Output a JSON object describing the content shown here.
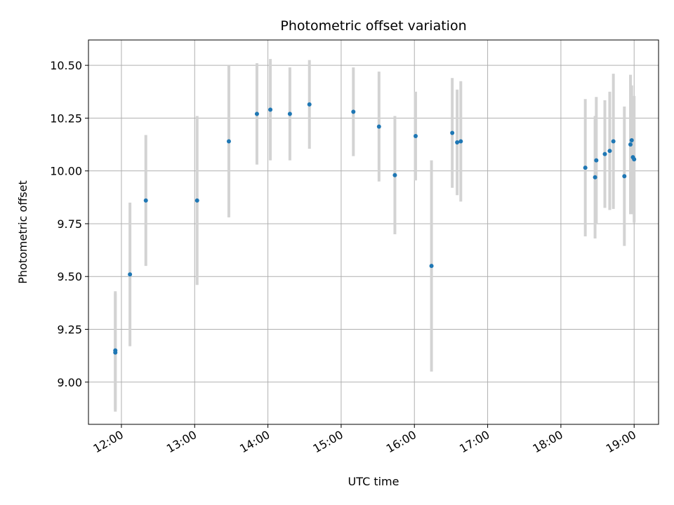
{
  "chart_data": {
    "type": "scatter",
    "title": "Photometric offset variation",
    "xlabel": "UTC time",
    "ylabel": "Photometric offset",
    "xlim": [
      "11:33",
      "19:20"
    ],
    "ylim": [
      8.8,
      10.62
    ],
    "x_ticks": [
      "12:00",
      "13:00",
      "14:00",
      "15:00",
      "16:00",
      "17:00",
      "18:00",
      "19:00"
    ],
    "y_ticks": [
      "9.00",
      "9.25",
      "9.50",
      "9.75",
      "10.00",
      "10.25",
      "10.50"
    ],
    "grid": true,
    "colors": {
      "points": "#1f77b4",
      "error_bars": "#d3d3d3",
      "grid": "#b0b0b0"
    },
    "points": [
      {
        "x": "11:55",
        "y": 9.15,
        "err": 0.28
      },
      {
        "x": "11:55",
        "y": 9.14,
        "err": 0.28
      },
      {
        "x": "12:07",
        "y": 9.51,
        "err": 0.34
      },
      {
        "x": "12:20",
        "y": 9.86,
        "err": 0.31
      },
      {
        "x": "13:02",
        "y": 9.86,
        "err": 0.4
      },
      {
        "x": "13:28",
        "y": 10.14,
        "err": 0.36
      },
      {
        "x": "13:51",
        "y": 10.27,
        "err": 0.24
      },
      {
        "x": "14:02",
        "y": 10.29,
        "err": 0.24
      },
      {
        "x": "14:18",
        "y": 10.27,
        "err": 0.22
      },
      {
        "x": "14:34",
        "y": 10.315,
        "err": 0.21
      },
      {
        "x": "15:10",
        "y": 10.28,
        "err": 0.21
      },
      {
        "x": "15:31",
        "y": 10.21,
        "err": 0.26
      },
      {
        "x": "15:44",
        "y": 9.98,
        "err": 0.28
      },
      {
        "x": "16:01",
        "y": 10.165,
        "err": 0.21
      },
      {
        "x": "16:14",
        "y": 9.55,
        "err": 0.5
      },
      {
        "x": "16:31",
        "y": 10.18,
        "err": 0.26
      },
      {
        "x": "16:35",
        "y": 10.135,
        "err": 0.25
      },
      {
        "x": "16:38",
        "y": 10.14,
        "err": 0.285
      },
      {
        "x": "18:20",
        "y": 10.015,
        "err": 0.325
      },
      {
        "x": "18:28",
        "y": 9.97,
        "err": 0.29
      },
      {
        "x": "18:29",
        "y": 10.05,
        "err": 0.3
      },
      {
        "x": "18:36",
        "y": 10.08,
        "err": 0.255
      },
      {
        "x": "18:40",
        "y": 10.095,
        "err": 0.28
      },
      {
        "x": "18:43",
        "y": 10.14,
        "err": 0.32
      },
      {
        "x": "18:52",
        "y": 9.975,
        "err": 0.33
      },
      {
        "x": "18:57",
        "y": 10.125,
        "err": 0.33
      },
      {
        "x": "18:58",
        "y": 10.145,
        "err": 0.26
      },
      {
        "x": "18:59",
        "y": 10.065,
        "err": 0.27
      },
      {
        "x": "19:00",
        "y": 10.055,
        "err": 0.3
      }
    ]
  }
}
